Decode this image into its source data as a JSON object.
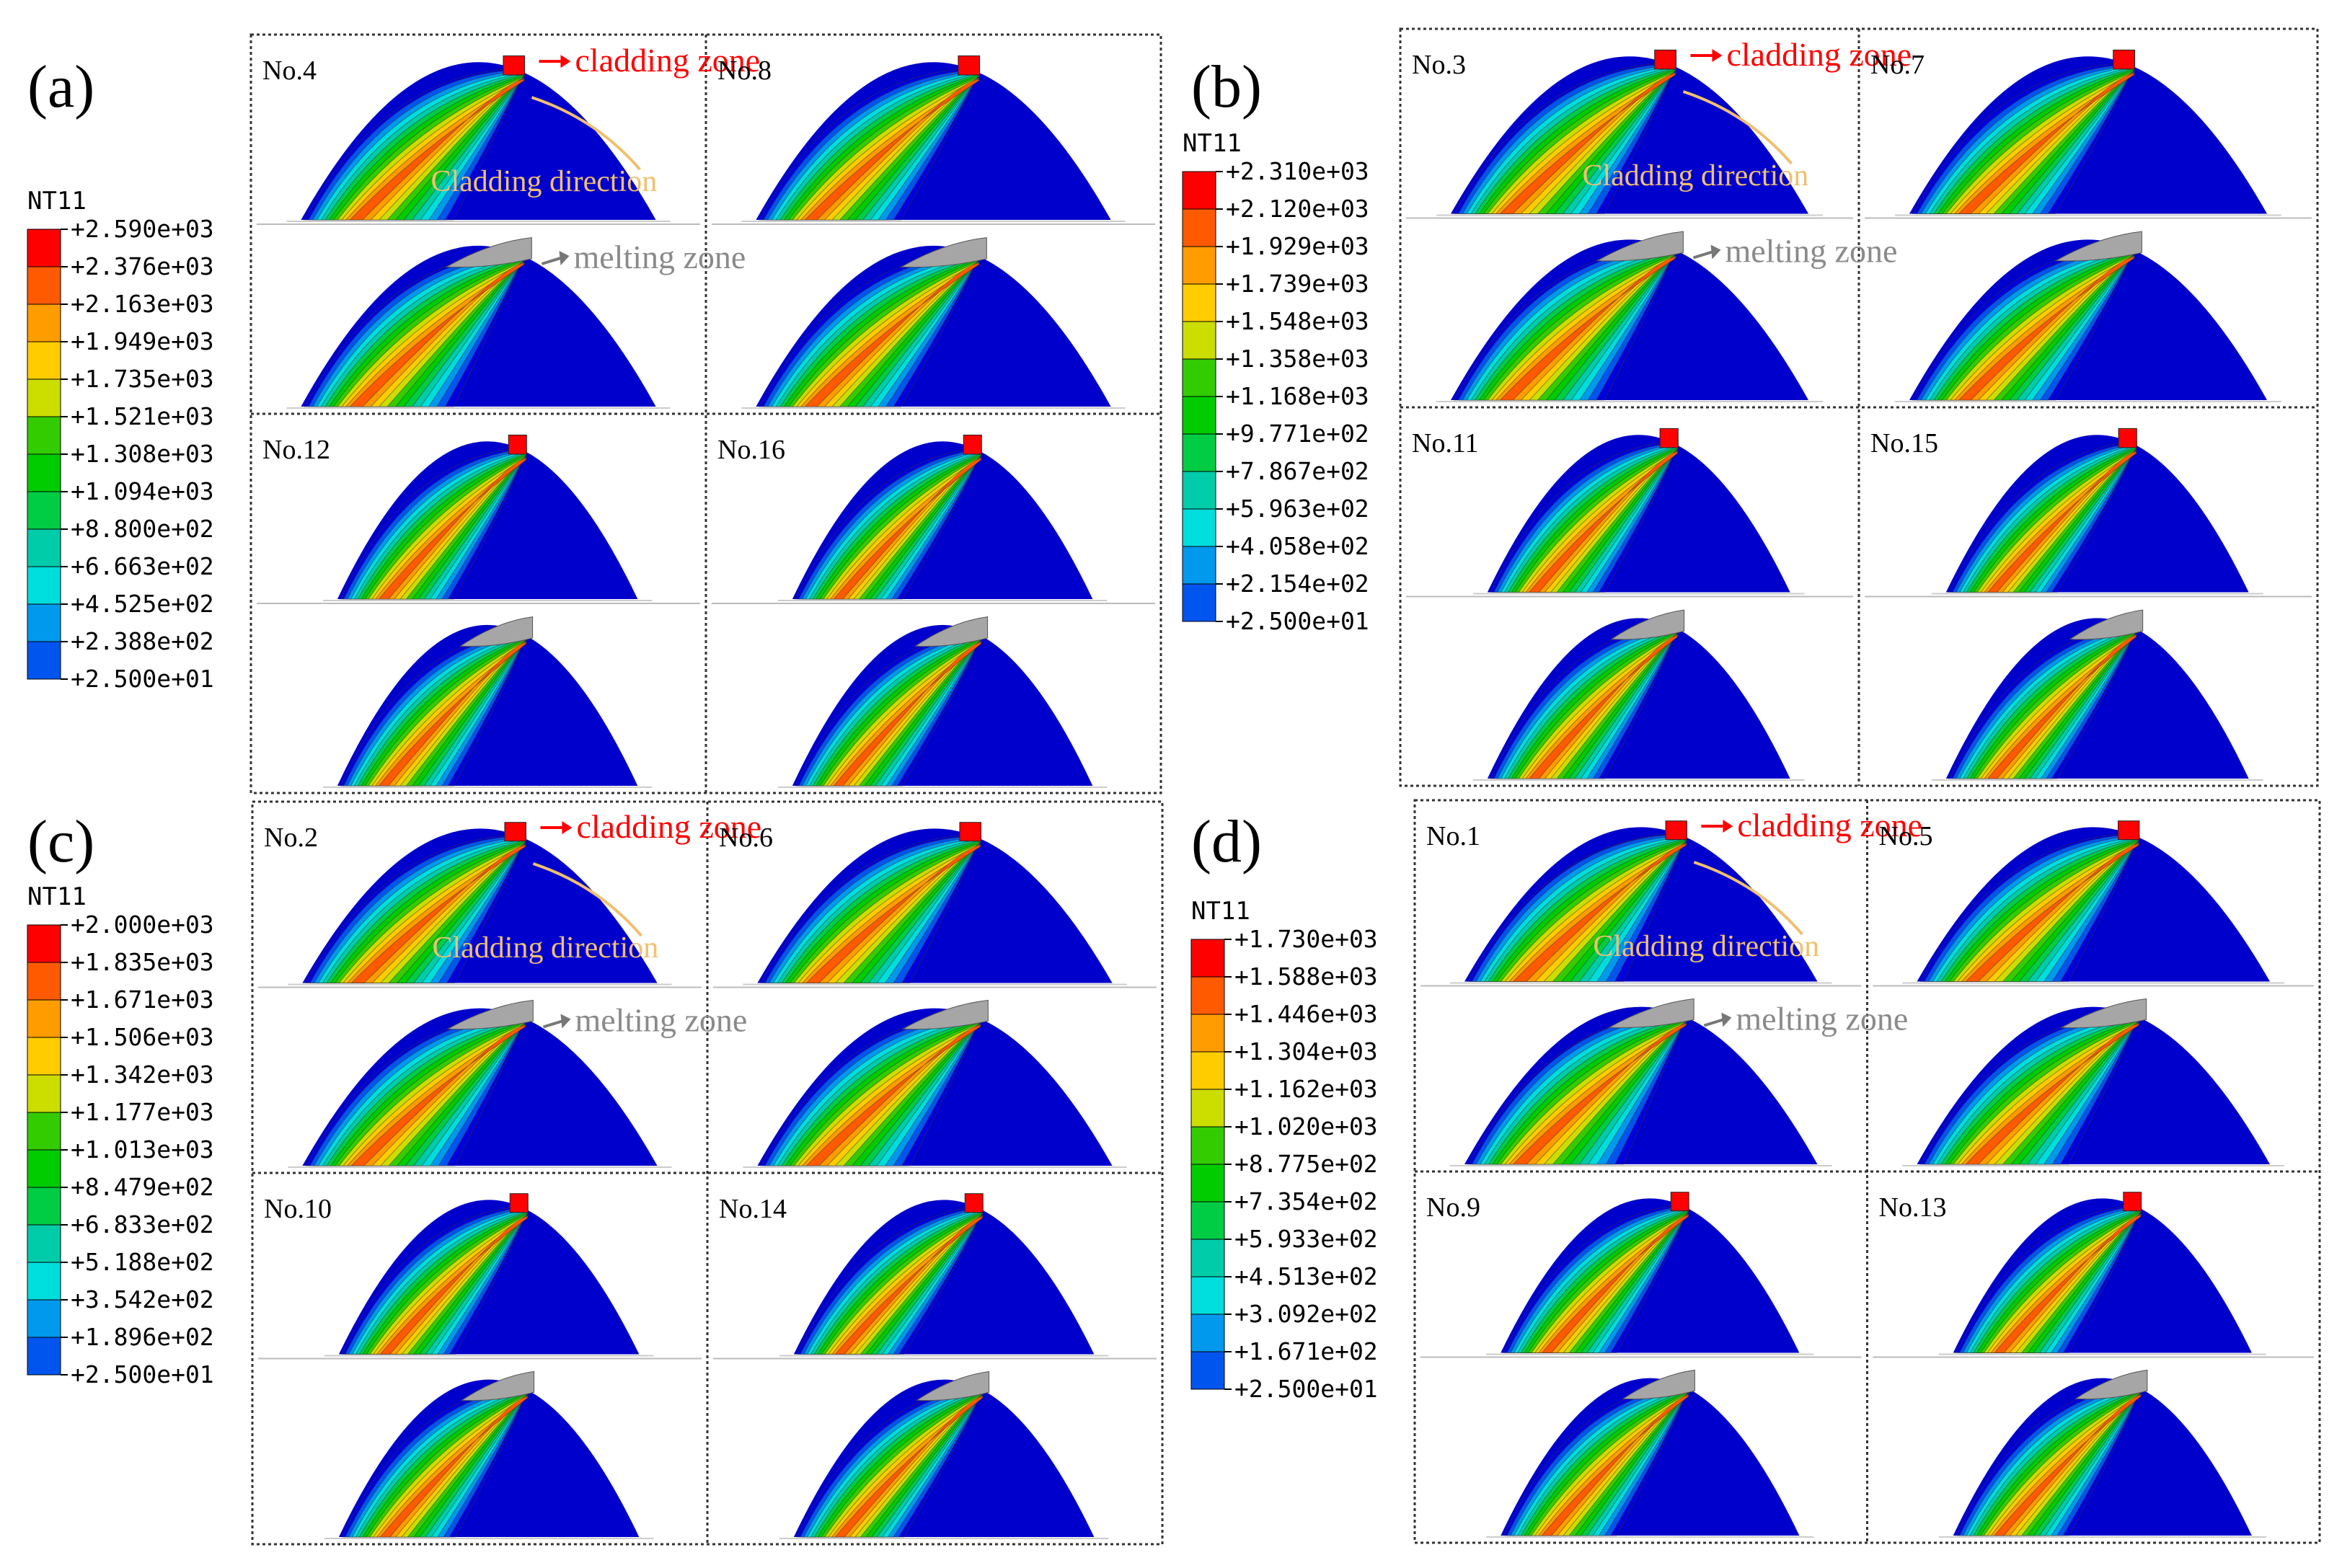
{
  "figure": {
    "panels": [
      {
        "id": "a",
        "label": "(a)",
        "legend": {
          "title": "NT11",
          "values": [
            "+2.590e+03",
            "+2.376e+03",
            "+2.163e+03",
            "+1.949e+03",
            "+1.735e+03",
            "+1.521e+03",
            "+1.308e+03",
            "+1.094e+03",
            "+8.800e+02",
            "+6.663e+02",
            "+4.525e+02",
            "+2.388e+02",
            "+2.500e+01"
          ]
        },
        "cells": [
          {
            "label": "No.4",
            "annotated": true,
            "spread": 1.0
          },
          {
            "label": "No.8",
            "annotated": false,
            "spread": 0.95
          },
          {
            "label": "No.12",
            "annotated": false,
            "spread": 0.9
          },
          {
            "label": "No.16",
            "annotated": false,
            "spread": 0.85
          }
        ]
      },
      {
        "id": "b",
        "label": "(b)",
        "legend": {
          "title": "NT11",
          "values": [
            "+2.310e+03",
            "+2.120e+03",
            "+1.929e+03",
            "+1.739e+03",
            "+1.548e+03",
            "+1.358e+03",
            "+1.168e+03",
            "+9.771e+02",
            "+7.867e+02",
            "+5.963e+02",
            "+4.058e+02",
            "+2.154e+02",
            "+2.500e+01"
          ]
        },
        "cells": [
          {
            "label": "No.3",
            "annotated": true,
            "spread": 1.0
          },
          {
            "label": "No.7",
            "annotated": false,
            "spread": 0.95
          },
          {
            "label": "No.11",
            "annotated": false,
            "spread": 0.9
          },
          {
            "label": "No.15",
            "annotated": false,
            "spread": 0.85
          }
        ]
      },
      {
        "id": "c",
        "label": "(c)",
        "legend": {
          "title": "NT11",
          "values": [
            "+2.000e+03",
            "+1.835e+03",
            "+1.671e+03",
            "+1.506e+03",
            "+1.342e+03",
            "+1.177e+03",
            "+1.013e+03",
            "+8.479e+02",
            "+6.833e+02",
            "+5.188e+02",
            "+3.542e+02",
            "+1.896e+02",
            "+2.500e+01"
          ]
        },
        "cells": [
          {
            "label": "No.2",
            "annotated": true,
            "spread": 1.0
          },
          {
            "label": "No.6",
            "annotated": false,
            "spread": 1.0
          },
          {
            "label": "No.10",
            "annotated": false,
            "spread": 0.9
          },
          {
            "label": "No.14",
            "annotated": false,
            "spread": 0.85
          }
        ]
      },
      {
        "id": "d",
        "label": "(d)",
        "legend": {
          "title": "NT11",
          "values": [
            "+1.730e+03",
            "+1.588e+03",
            "+1.446e+03",
            "+1.304e+03",
            "+1.162e+03",
            "+1.020e+03",
            "+8.775e+02",
            "+7.354e+02",
            "+5.933e+02",
            "+4.513e+02",
            "+3.092e+02",
            "+1.671e+02",
            "+2.500e+01"
          ]
        },
        "cells": [
          {
            "label": "No.1",
            "annotated": true,
            "spread": 1.05
          },
          {
            "label": "No.5",
            "annotated": false,
            "spread": 1.0
          },
          {
            "label": "No.9",
            "annotated": false,
            "spread": 0.9
          },
          {
            "label": "No.13",
            "annotated": false,
            "spread": 0.9
          }
        ]
      }
    ],
    "annotations": {
      "cladding_zone": "cladding zone",
      "cladding_direction": "Cladding direction",
      "melting_zone": "melting zone"
    },
    "colors": {
      "contour_scale": [
        "#ff0000",
        "#ff5a00",
        "#ff9c00",
        "#ffcc00",
        "#ccdd00",
        "#33cc00",
        "#00cc00",
        "#00cc44",
        "#00ccaa",
        "#00dddd",
        "#0099ee",
        "#0055ee",
        "#0000dd"
      ],
      "melting_zone_fill": "#a6a6a6",
      "cladding_zone_text": "#ff0000",
      "cladding_direction_text": "#f0c070",
      "melting_zone_text": "#8a8a8a"
    }
  }
}
